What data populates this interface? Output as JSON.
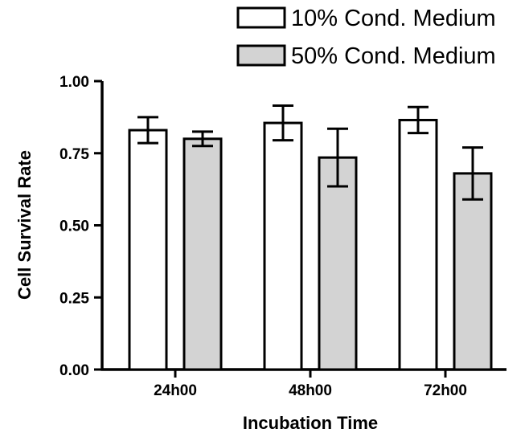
{
  "chart_data": {
    "type": "bar",
    "categories": [
      "24h00",
      "48h00",
      "72h00"
    ],
    "series": [
      {
        "name": "10% Cond. Medium",
        "color": "#ffffff",
        "values": [
          0.83,
          0.855,
          0.865
        ],
        "errors": [
          0.045,
          0.06,
          0.045
        ]
      },
      {
        "name": "50% Cond. Medium",
        "color": "#d3d3d3",
        "values": [
          0.8,
          0.735,
          0.68
        ],
        "errors": [
          0.025,
          0.1,
          0.09
        ]
      }
    ],
    "xlabel": "Incubation Time",
    "ylabel": "Cell Survival  Rate",
    "ylim": [
      0,
      1
    ],
    "yticks": [
      0,
      0.25,
      0.5,
      0.75,
      1
    ],
    "ytick_labels": [
      "0.00",
      "0.25",
      "0.50",
      "0.75",
      "1.00"
    ],
    "grid": false,
    "legend_position": "top-right"
  }
}
